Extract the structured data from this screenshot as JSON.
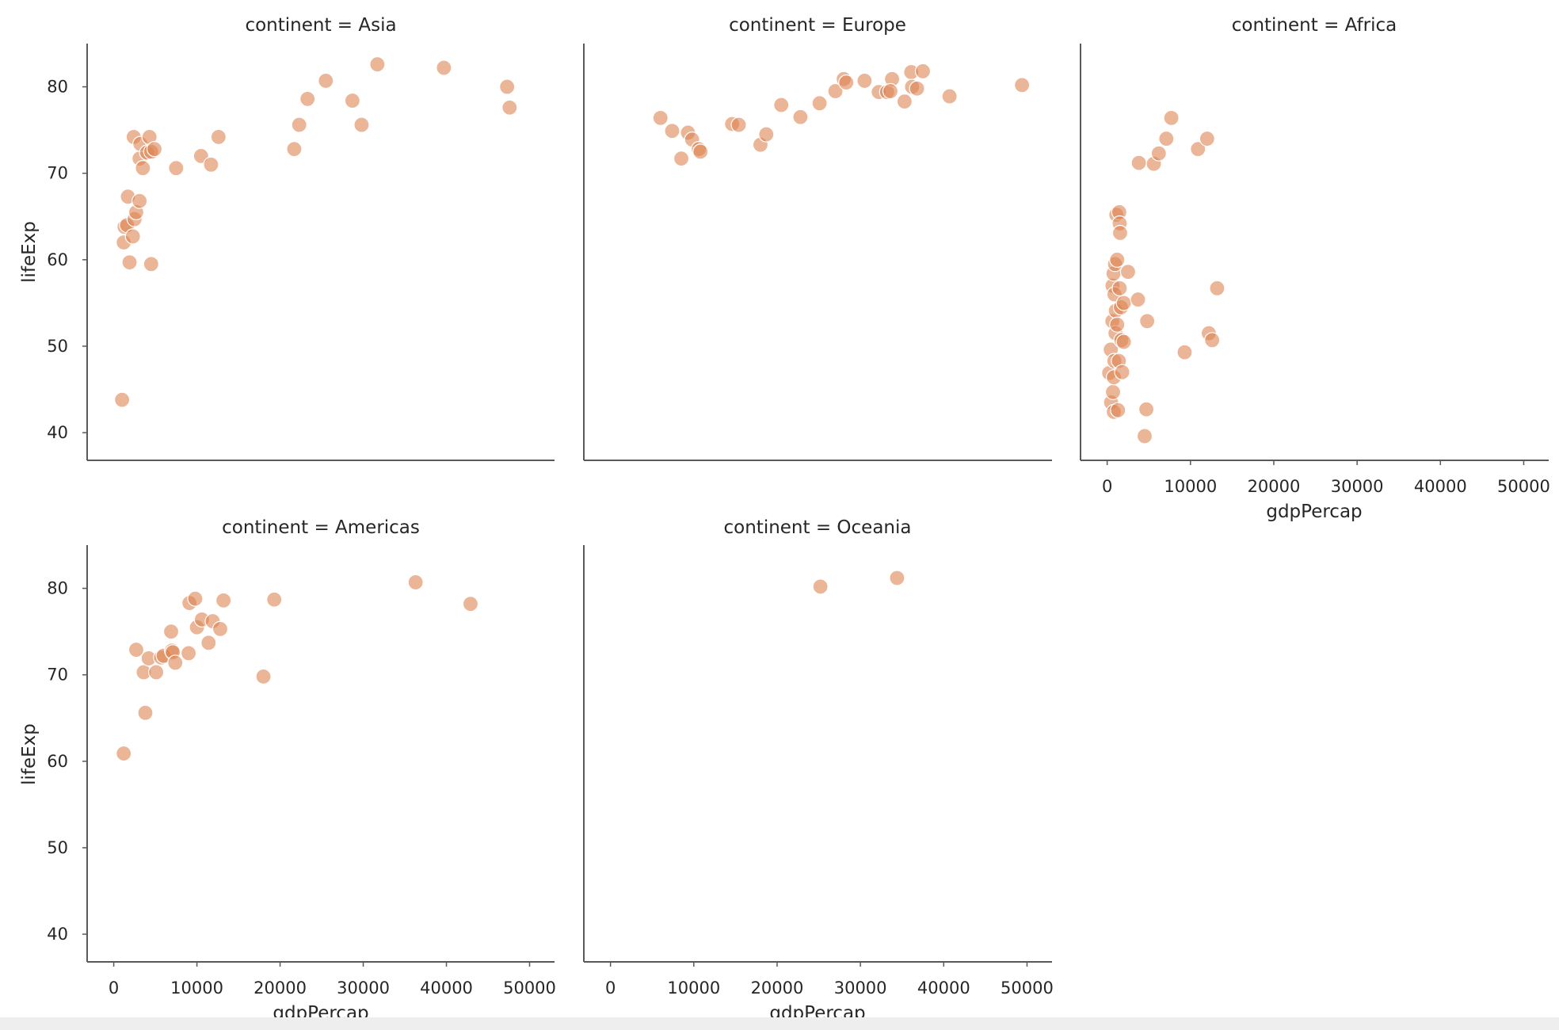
{
  "chart_data": {
    "type": "scatter",
    "facet_variable": "continent",
    "xlabel": "gdpPercap",
    "ylabel": "lifeExp",
    "xlim": [
      -3200,
      53000
    ],
    "ylim": [
      36.8,
      85
    ],
    "xticks": [
      0,
      10000,
      20000,
      30000,
      40000,
      50000
    ],
    "yticks": [
      40,
      50,
      60,
      70,
      80
    ],
    "marker_color": "#dd8452",
    "marker_alpha": 0.6,
    "marker_edge_color": "#ffffff",
    "grid": false,
    "panels": [
      {
        "title": "continent = Asia",
        "points": [
          [
            1000,
            43.8
          ],
          [
            1200,
            62.0
          ],
          [
            1300,
            63.8
          ],
          [
            1600,
            64.0
          ],
          [
            1700,
            67.3
          ],
          [
            1900,
            59.7
          ],
          [
            2300,
            62.7
          ],
          [
            2400,
            74.2
          ],
          [
            2500,
            64.7
          ],
          [
            2700,
            65.5
          ],
          [
            3100,
            66.8
          ],
          [
            3100,
            71.7
          ],
          [
            3200,
            73.4
          ],
          [
            3500,
            70.6
          ],
          [
            4000,
            72.4
          ],
          [
            4300,
            74.2
          ],
          [
            4500,
            59.5
          ],
          [
            4500,
            72.5
          ],
          [
            4900,
            72.8
          ],
          [
            7500,
            70.6
          ],
          [
            10500,
            72.0
          ],
          [
            11700,
            71.0
          ],
          [
            12600,
            74.2
          ],
          [
            21700,
            72.8
          ],
          [
            22300,
            75.6
          ],
          [
            23300,
            78.6
          ],
          [
            25500,
            80.7
          ],
          [
            28700,
            78.4
          ],
          [
            29800,
            75.6
          ],
          [
            31700,
            82.6
          ],
          [
            39700,
            82.2
          ],
          [
            47300,
            80.0
          ],
          [
            47600,
            77.6
          ]
        ]
      },
      {
        "title": "continent = Europe",
        "points": [
          [
            6000,
            76.4
          ],
          [
            7400,
            74.9
          ],
          [
            8500,
            71.7
          ],
          [
            9300,
            74.7
          ],
          [
            9800,
            73.9
          ],
          [
            10600,
            72.8
          ],
          [
            10800,
            72.5
          ],
          [
            14600,
            75.7
          ],
          [
            15400,
            75.6
          ],
          [
            18000,
            73.3
          ],
          [
            18700,
            74.5
          ],
          [
            20500,
            77.9
          ],
          [
            22800,
            76.5
          ],
          [
            25100,
            78.1
          ],
          [
            27000,
            79.5
          ],
          [
            28000,
            80.9
          ],
          [
            28300,
            80.5
          ],
          [
            30500,
            80.7
          ],
          [
            32200,
            79.4
          ],
          [
            33200,
            79.4
          ],
          [
            33800,
            80.9
          ],
          [
            33600,
            79.5
          ],
          [
            35300,
            78.3
          ],
          [
            36100,
            81.7
          ],
          [
            36200,
            80.0
          ],
          [
            36800,
            79.8
          ],
          [
            37500,
            81.8
          ],
          [
            40700,
            78.9
          ],
          [
            49400,
            80.2
          ]
        ]
      },
      {
        "title": "continent = Africa",
        "points": [
          [
            240,
            46.9
          ],
          [
            430,
            49.6
          ],
          [
            470,
            43.5
          ],
          [
            620,
            52.9
          ],
          [
            640,
            57.0
          ],
          [
            700,
            44.7
          ],
          [
            760,
            58.4
          ],
          [
            800,
            42.4
          ],
          [
            800,
            46.4
          ],
          [
            860,
            48.3
          ],
          [
            880,
            56.0
          ],
          [
            940,
            59.5
          ],
          [
            1000,
            51.5
          ],
          [
            1040,
            54.1
          ],
          [
            1100,
            65.2
          ],
          [
            1200,
            52.5
          ],
          [
            1200,
            60.0
          ],
          [
            1300,
            42.6
          ],
          [
            1400,
            48.3
          ],
          [
            1450,
            65.5
          ],
          [
            1500,
            56.7
          ],
          [
            1500,
            64.2
          ],
          [
            1550,
            63.1
          ],
          [
            1650,
            54.5
          ],
          [
            1700,
            50.7
          ],
          [
            1800,
            47.0
          ],
          [
            2000,
            50.5
          ],
          [
            2000,
            55.0
          ],
          [
            2500,
            58.6
          ],
          [
            3700,
            55.4
          ],
          [
            3800,
            71.2
          ],
          [
            4500,
            39.6
          ],
          [
            4700,
            42.7
          ],
          [
            4800,
            52.9
          ],
          [
            5600,
            71.1
          ],
          [
            6200,
            72.3
          ],
          [
            7100,
            74.0
          ],
          [
            7700,
            76.4
          ],
          [
            9300,
            49.3
          ],
          [
            10900,
            72.8
          ],
          [
            12000,
            74.0
          ],
          [
            12200,
            51.5
          ],
          [
            12600,
            50.7
          ],
          [
            13200,
            56.7
          ]
        ]
      },
      {
        "title": "continent = Americas",
        "points": [
          [
            1200,
            60.9
          ],
          [
            2700,
            72.9
          ],
          [
            3600,
            70.3
          ],
          [
            3800,
            65.6
          ],
          [
            4200,
            71.9
          ],
          [
            5100,
            70.3
          ],
          [
            5700,
            72.0
          ],
          [
            6000,
            72.2
          ],
          [
            6900,
            75.0
          ],
          [
            7000,
            72.8
          ],
          [
            7100,
            72.6
          ],
          [
            7400,
            71.4
          ],
          [
            9000,
            72.5
          ],
          [
            9100,
            78.3
          ],
          [
            9800,
            78.8
          ],
          [
            10000,
            75.5
          ],
          [
            10600,
            76.4
          ],
          [
            11400,
            73.7
          ],
          [
            11900,
            76.2
          ],
          [
            12800,
            75.3
          ],
          [
            13200,
            78.6
          ],
          [
            18000,
            69.8
          ],
          [
            19300,
            78.7
          ],
          [
            36300,
            80.7
          ],
          [
            42900,
            78.2
          ]
        ]
      },
      {
        "title": "continent = Oceania",
        "points": [
          [
            25200,
            80.2
          ],
          [
            34400,
            81.2
          ]
        ]
      }
    ]
  }
}
